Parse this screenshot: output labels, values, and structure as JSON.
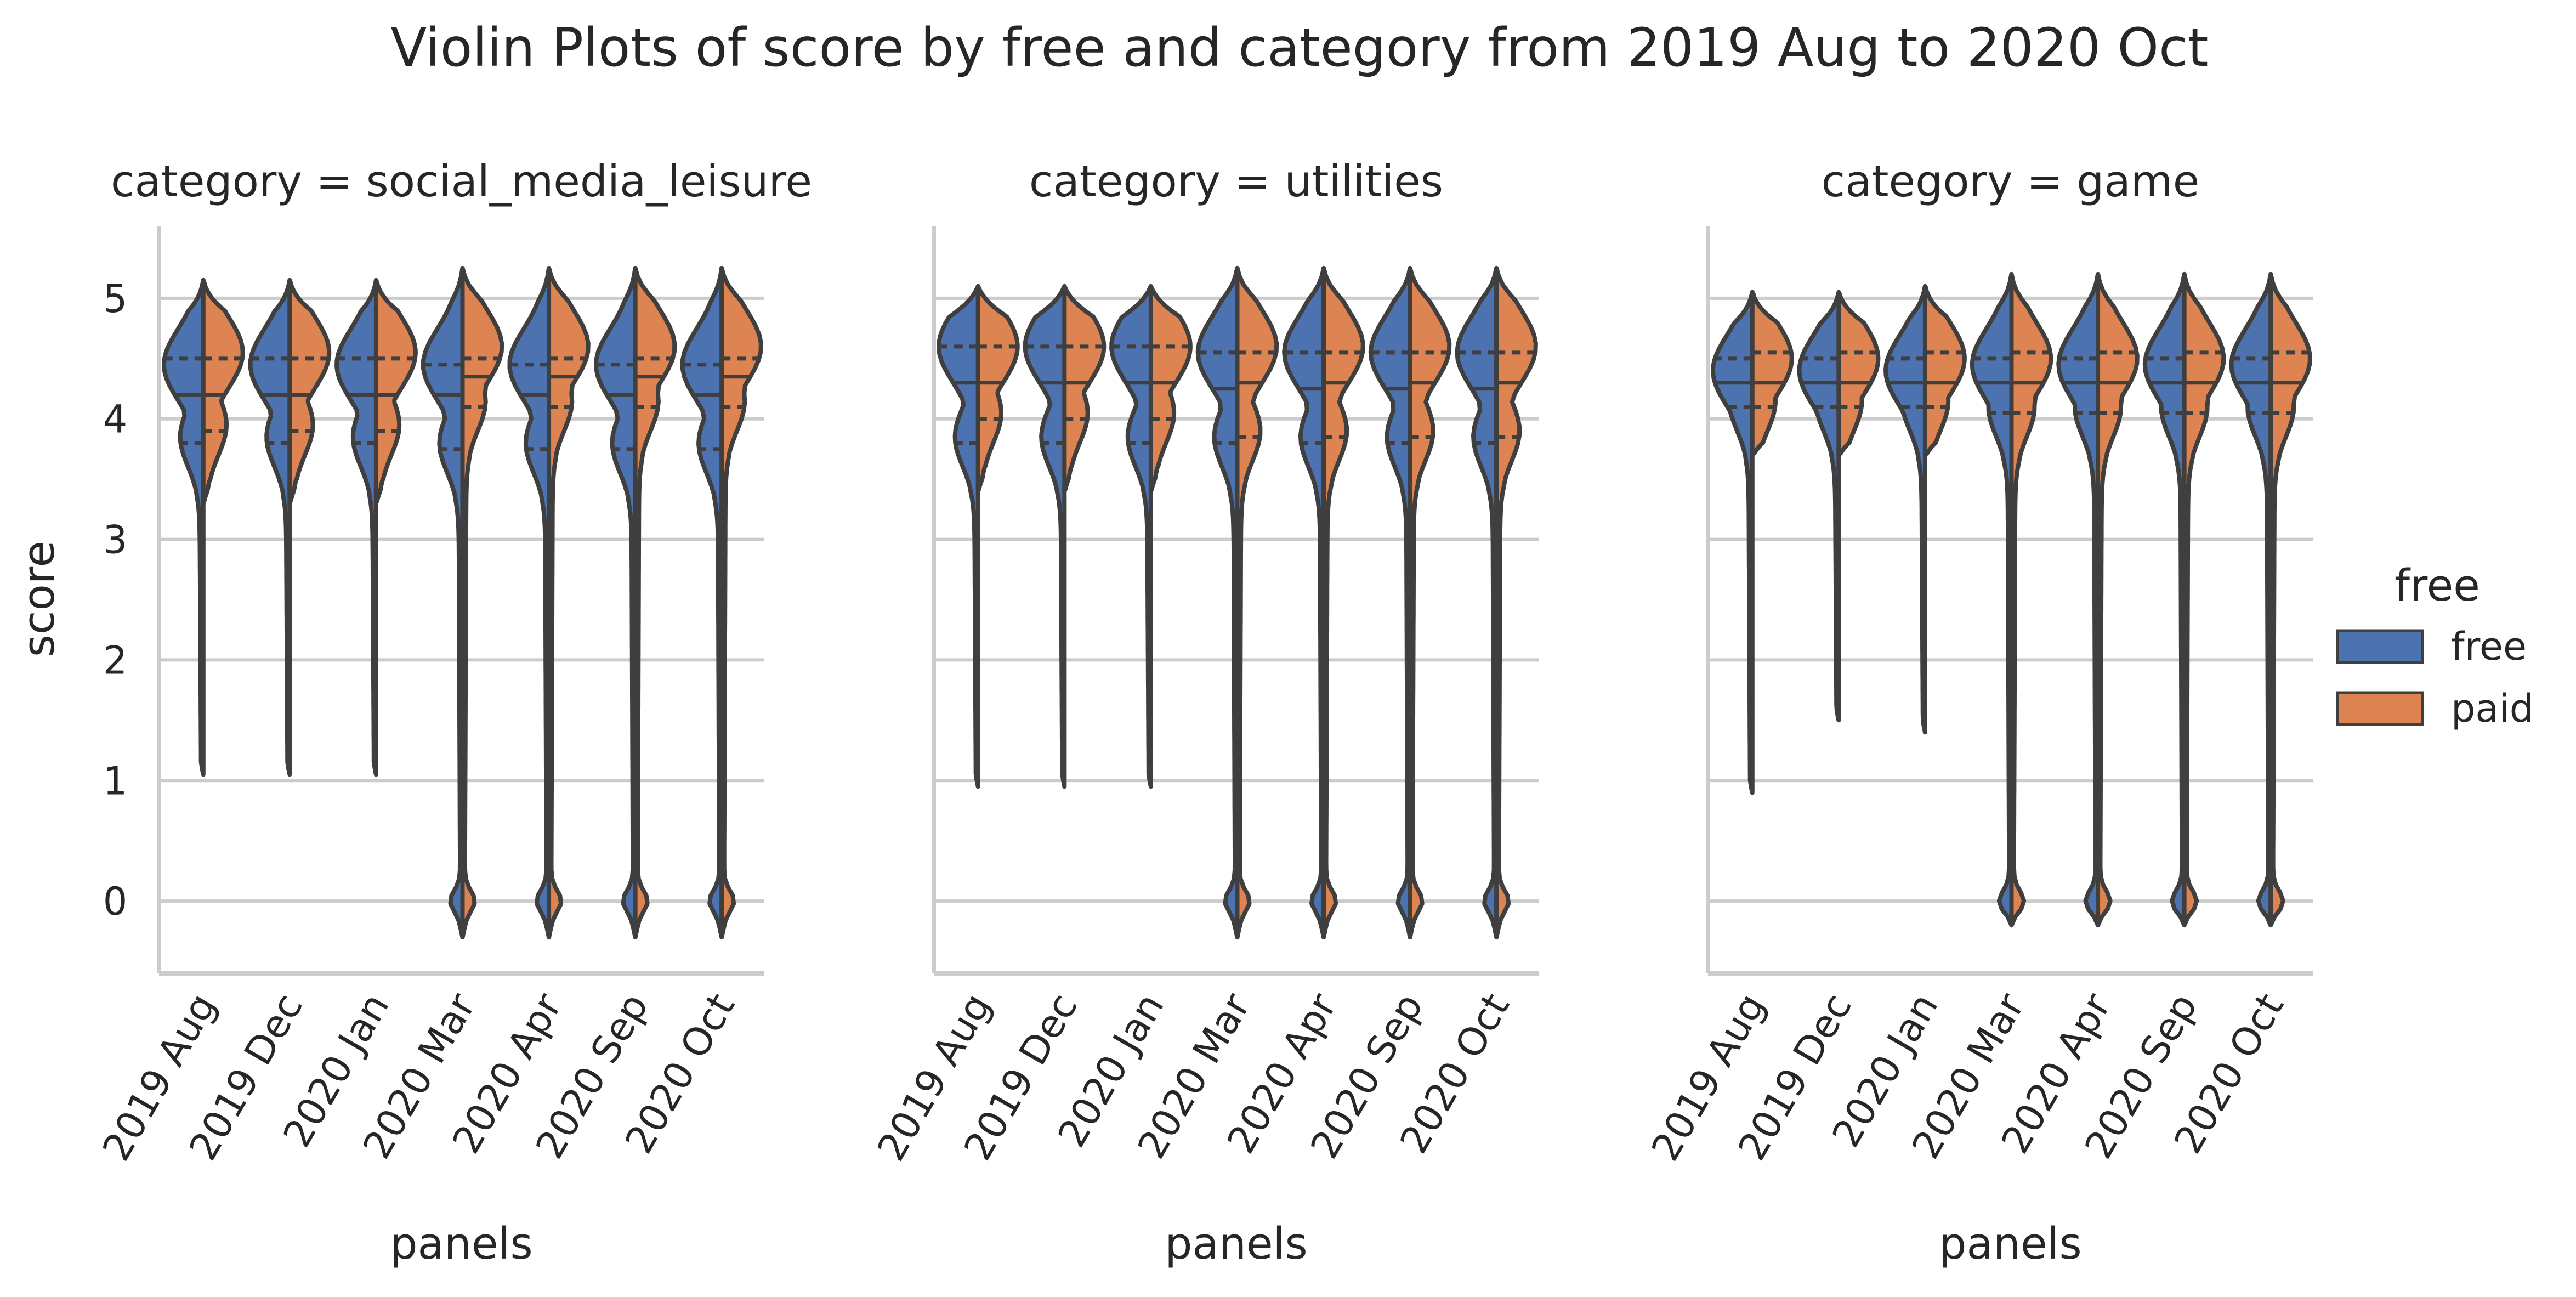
{
  "chart_data": {
    "type": "violin",
    "title": "Violin Plots of score by free and category from 2019 Aug to 2020 Oct",
    "xlabel": "panels",
    "ylabel": "score",
    "ylim": [
      -0.6,
      5.6
    ],
    "yticks": [
      0,
      1,
      2,
      3,
      4,
      5
    ],
    "grid": "horizontal",
    "categories": [
      "2019 Aug",
      "2019 Dec",
      "2020 Jan",
      "2020 Mar",
      "2020 Apr",
      "2020 Sep",
      "2020 Oct"
    ],
    "legend": {
      "title": "free",
      "placement": "right",
      "entries": [
        {
          "label": "free",
          "color": "#4c72b0"
        },
        {
          "label": "paid",
          "color": "#dd8452"
        }
      ]
    },
    "colors": {
      "free": "#4c72b0",
      "paid": "#dd8452",
      "outline": "#3f3f3f",
      "grid": "#cccccc"
    },
    "panels": [
      {
        "title": "category = social_media_leisure",
        "violins": [
          {
            "x": "2019 Aug",
            "free": {
              "min": 1.05,
              "max": 5.15,
              "q1": 3.8,
              "median": 4.2,
              "q3": 4.5,
              "mode": 4.45
            },
            "paid": {
              "min": 3.3,
              "max": 5.15,
              "q1": 3.9,
              "median": 4.2,
              "q3": 4.5,
              "mode": 4.55
            }
          },
          {
            "x": "2019 Dec",
            "free": {
              "min": 1.05,
              "max": 5.15,
              "q1": 3.8,
              "median": 4.2,
              "q3": 4.5,
              "mode": 4.45
            },
            "paid": {
              "min": 3.3,
              "max": 5.15,
              "q1": 3.9,
              "median": 4.2,
              "q3": 4.5,
              "mode": 4.55
            }
          },
          {
            "x": "2020 Jan",
            "free": {
              "min": 1.05,
              "max": 5.15,
              "q1": 3.8,
              "median": 4.2,
              "q3": 4.5,
              "mode": 4.45
            },
            "paid": {
              "min": 3.3,
              "max": 5.15,
              "q1": 3.9,
              "median": 4.2,
              "q3": 4.5,
              "mode": 4.55
            }
          },
          {
            "x": "2020 Mar",
            "free": {
              "min": -0.3,
              "max": 5.25,
              "q1": 3.75,
              "median": 4.2,
              "q3": 4.45,
              "mode": 4.45
            },
            "paid": {
              "min": -0.3,
              "max": 5.25,
              "q1": 4.1,
              "median": 4.35,
              "q3": 4.5,
              "mode": 4.6
            }
          },
          {
            "x": "2020 Apr",
            "free": {
              "min": -0.3,
              "max": 5.25,
              "q1": 3.75,
              "median": 4.2,
              "q3": 4.45,
              "mode": 4.45
            },
            "paid": {
              "min": -0.3,
              "max": 5.25,
              "q1": 4.1,
              "median": 4.35,
              "q3": 4.5,
              "mode": 4.6
            }
          },
          {
            "x": "2020 Sep",
            "free": {
              "min": -0.3,
              "max": 5.25,
              "q1": 3.75,
              "median": 4.2,
              "q3": 4.45,
              "mode": 4.45
            },
            "paid": {
              "min": -0.3,
              "max": 5.25,
              "q1": 4.1,
              "median": 4.35,
              "q3": 4.5,
              "mode": 4.6
            }
          },
          {
            "x": "2020 Oct",
            "free": {
              "min": -0.3,
              "max": 5.25,
              "q1": 3.75,
              "median": 4.2,
              "q3": 4.45,
              "mode": 4.45
            },
            "paid": {
              "min": -0.3,
              "max": 5.25,
              "q1": 4.1,
              "median": 4.35,
              "q3": 4.5,
              "mode": 4.6
            }
          }
        ]
      },
      {
        "title": "category = utilities",
        "violins": [
          {
            "x": "2019 Aug",
            "free": {
              "min": 0.95,
              "max": 5.1,
              "q1": 3.8,
              "median": 4.3,
              "q3": 4.6,
              "mode": 4.6
            },
            "paid": {
              "min": 3.4,
              "max": 5.1,
              "q1": 4.0,
              "median": 4.3,
              "q3": 4.6,
              "mode": 4.6
            }
          },
          {
            "x": "2019 Dec",
            "free": {
              "min": 0.95,
              "max": 5.1,
              "q1": 3.8,
              "median": 4.3,
              "q3": 4.6,
              "mode": 4.6
            },
            "paid": {
              "min": 3.4,
              "max": 5.1,
              "q1": 4.0,
              "median": 4.3,
              "q3": 4.6,
              "mode": 4.6
            }
          },
          {
            "x": "2020 Jan",
            "free": {
              "min": 0.95,
              "max": 5.1,
              "q1": 3.8,
              "median": 4.3,
              "q3": 4.6,
              "mode": 4.6
            },
            "paid": {
              "min": 3.4,
              "max": 5.1,
              "q1": 4.0,
              "median": 4.3,
              "q3": 4.6,
              "mode": 4.6
            }
          },
          {
            "x": "2020 Mar",
            "free": {
              "min": -0.3,
              "max": 5.25,
              "q1": 3.8,
              "median": 4.25,
              "q3": 4.55,
              "mode": 4.55
            },
            "paid": {
              "min": -0.3,
              "max": 5.25,
              "q1": 3.85,
              "median": 4.3,
              "q3": 4.55,
              "mode": 4.6
            }
          },
          {
            "x": "2020 Apr",
            "free": {
              "min": -0.3,
              "max": 5.25,
              "q1": 3.8,
              "median": 4.25,
              "q3": 4.55,
              "mode": 4.55
            },
            "paid": {
              "min": -0.3,
              "max": 5.25,
              "q1": 3.85,
              "median": 4.3,
              "q3": 4.55,
              "mode": 4.6
            }
          },
          {
            "x": "2020 Sep",
            "free": {
              "min": -0.3,
              "max": 5.25,
              "q1": 3.8,
              "median": 4.25,
              "q3": 4.55,
              "mode": 4.55
            },
            "paid": {
              "min": -0.3,
              "max": 5.25,
              "q1": 3.85,
              "median": 4.3,
              "q3": 4.55,
              "mode": 4.6
            }
          },
          {
            "x": "2020 Oct",
            "free": {
              "min": -0.3,
              "max": 5.25,
              "q1": 3.8,
              "median": 4.25,
              "q3": 4.55,
              "mode": 4.55
            },
            "paid": {
              "min": -0.3,
              "max": 5.25,
              "q1": 3.85,
              "median": 4.3,
              "q3": 4.55,
              "mode": 4.6
            }
          }
        ]
      },
      {
        "title": "category = game",
        "violins": [
          {
            "x": "2019 Aug",
            "free": {
              "min": 0.9,
              "max": 5.05,
              "q1": 4.1,
              "median": 4.3,
              "q3": 4.5,
              "mode": 4.4
            },
            "paid": {
              "min": 3.7,
              "max": 5.05,
              "q1": 4.1,
              "median": 4.3,
              "q3": 4.55,
              "mode": 4.5
            }
          },
          {
            "x": "2019 Dec",
            "free": {
              "min": 1.5,
              "max": 5.05,
              "q1": 4.1,
              "median": 4.3,
              "q3": 4.5,
              "mode": 4.4
            },
            "paid": {
              "min": 3.7,
              "max": 5.05,
              "q1": 4.1,
              "median": 4.3,
              "q3": 4.55,
              "mode": 4.5
            }
          },
          {
            "x": "2020 Jan",
            "free": {
              "min": 1.4,
              "max": 5.1,
              "q1": 4.1,
              "median": 4.3,
              "q3": 4.5,
              "mode": 4.4
            },
            "paid": {
              "min": 3.7,
              "max": 5.1,
              "q1": 4.1,
              "median": 4.3,
              "q3": 4.55,
              "mode": 4.5
            }
          },
          {
            "x": "2020 Mar",
            "free": {
              "min": -0.2,
              "max": 5.2,
              "q1": 4.05,
              "median": 4.3,
              "q3": 4.5,
              "mode": 4.45
            },
            "paid": {
              "min": -0.2,
              "max": 5.2,
              "q1": 4.05,
              "median": 4.3,
              "q3": 4.55,
              "mode": 4.5
            }
          },
          {
            "x": "2020 Apr",
            "free": {
              "min": -0.2,
              "max": 5.2,
              "q1": 4.05,
              "median": 4.3,
              "q3": 4.5,
              "mode": 4.45
            },
            "paid": {
              "min": -0.2,
              "max": 5.2,
              "q1": 4.05,
              "median": 4.3,
              "q3": 4.55,
              "mode": 4.5
            }
          },
          {
            "x": "2020 Sep",
            "free": {
              "min": -0.2,
              "max": 5.2,
              "q1": 4.05,
              "median": 4.3,
              "q3": 4.5,
              "mode": 4.45
            },
            "paid": {
              "min": -0.2,
              "max": 5.2,
              "q1": 4.05,
              "median": 4.3,
              "q3": 4.55,
              "mode": 4.5
            }
          },
          {
            "x": "2020 Oct",
            "free": {
              "min": -0.2,
              "max": 5.2,
              "q1": 4.05,
              "median": 4.3,
              "q3": 4.5,
              "mode": 4.45
            },
            "paid": {
              "min": -0.2,
              "max": 5.2,
              "q1": 4.05,
              "median": 4.3,
              "q3": 4.55,
              "mode": 4.5
            }
          }
        ]
      }
    ]
  }
}
